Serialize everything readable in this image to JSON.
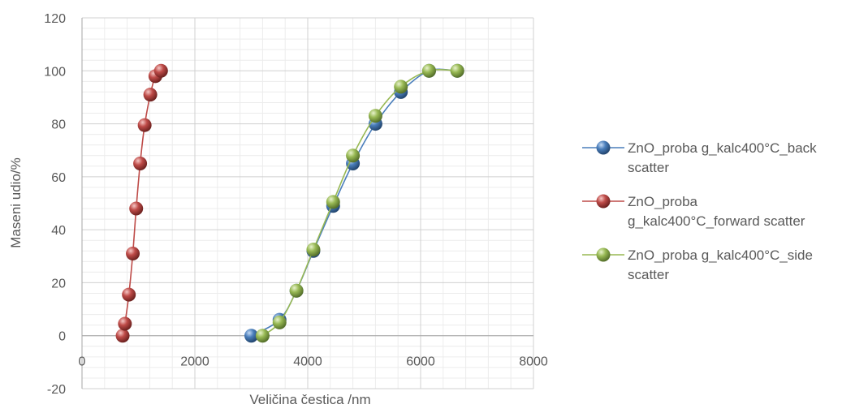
{
  "chart_data": {
    "type": "scatter",
    "title": "",
    "xlabel": "Veličina čestica /nm",
    "ylabel": "Maseni udio/%",
    "xlim": [
      0,
      8000
    ],
    "ylim": [
      -20,
      120
    ],
    "xticks": [
      0,
      2000,
      4000,
      6000,
      8000
    ],
    "yticks": [
      -20,
      0,
      20,
      40,
      60,
      80,
      100,
      120
    ],
    "grid": true,
    "legend": "right",
    "series": [
      {
        "name": "ZnO_proba g_kalc400°C_back scatter",
        "legend_lines": [
          "ZnO_proba g_kalc400°C_back",
          "scatter"
        ],
        "color": "#4a7ebb",
        "x": [
          3000,
          3500,
          3800,
          4100,
          4450,
          4800,
          5200,
          5650,
          6150,
          6650
        ],
        "y": [
          0,
          6,
          17,
          32,
          49,
          65,
          80,
          92,
          100,
          100
        ]
      },
      {
        "name": "ZnO_proba g_kalc400°C_forward scatter",
        "legend_lines": [
          "ZnO_proba",
          "g_kalc400°C_forward scatter"
        ],
        "color": "#be4b48",
        "x": [
          720,
          760,
          830,
          900,
          960,
          1030,
          1110,
          1210,
          1300,
          1400
        ],
        "y": [
          0,
          4.5,
          15.5,
          31,
          48,
          65,
          79.5,
          91,
          98,
          100
        ]
      },
      {
        "name": "ZnO_proba g_kalc400°C_side scatter",
        "legend_lines": [
          "ZnO_proba g_kalc400°C_side",
          "scatter"
        ],
        "color": "#98b954",
        "x": [
          3200,
          3500,
          3800,
          4100,
          4450,
          4800,
          5200,
          5650,
          6150,
          6650
        ],
        "y": [
          0,
          5,
          17,
          32.5,
          50.5,
          68,
          83,
          94,
          100,
          100
        ]
      }
    ]
  }
}
